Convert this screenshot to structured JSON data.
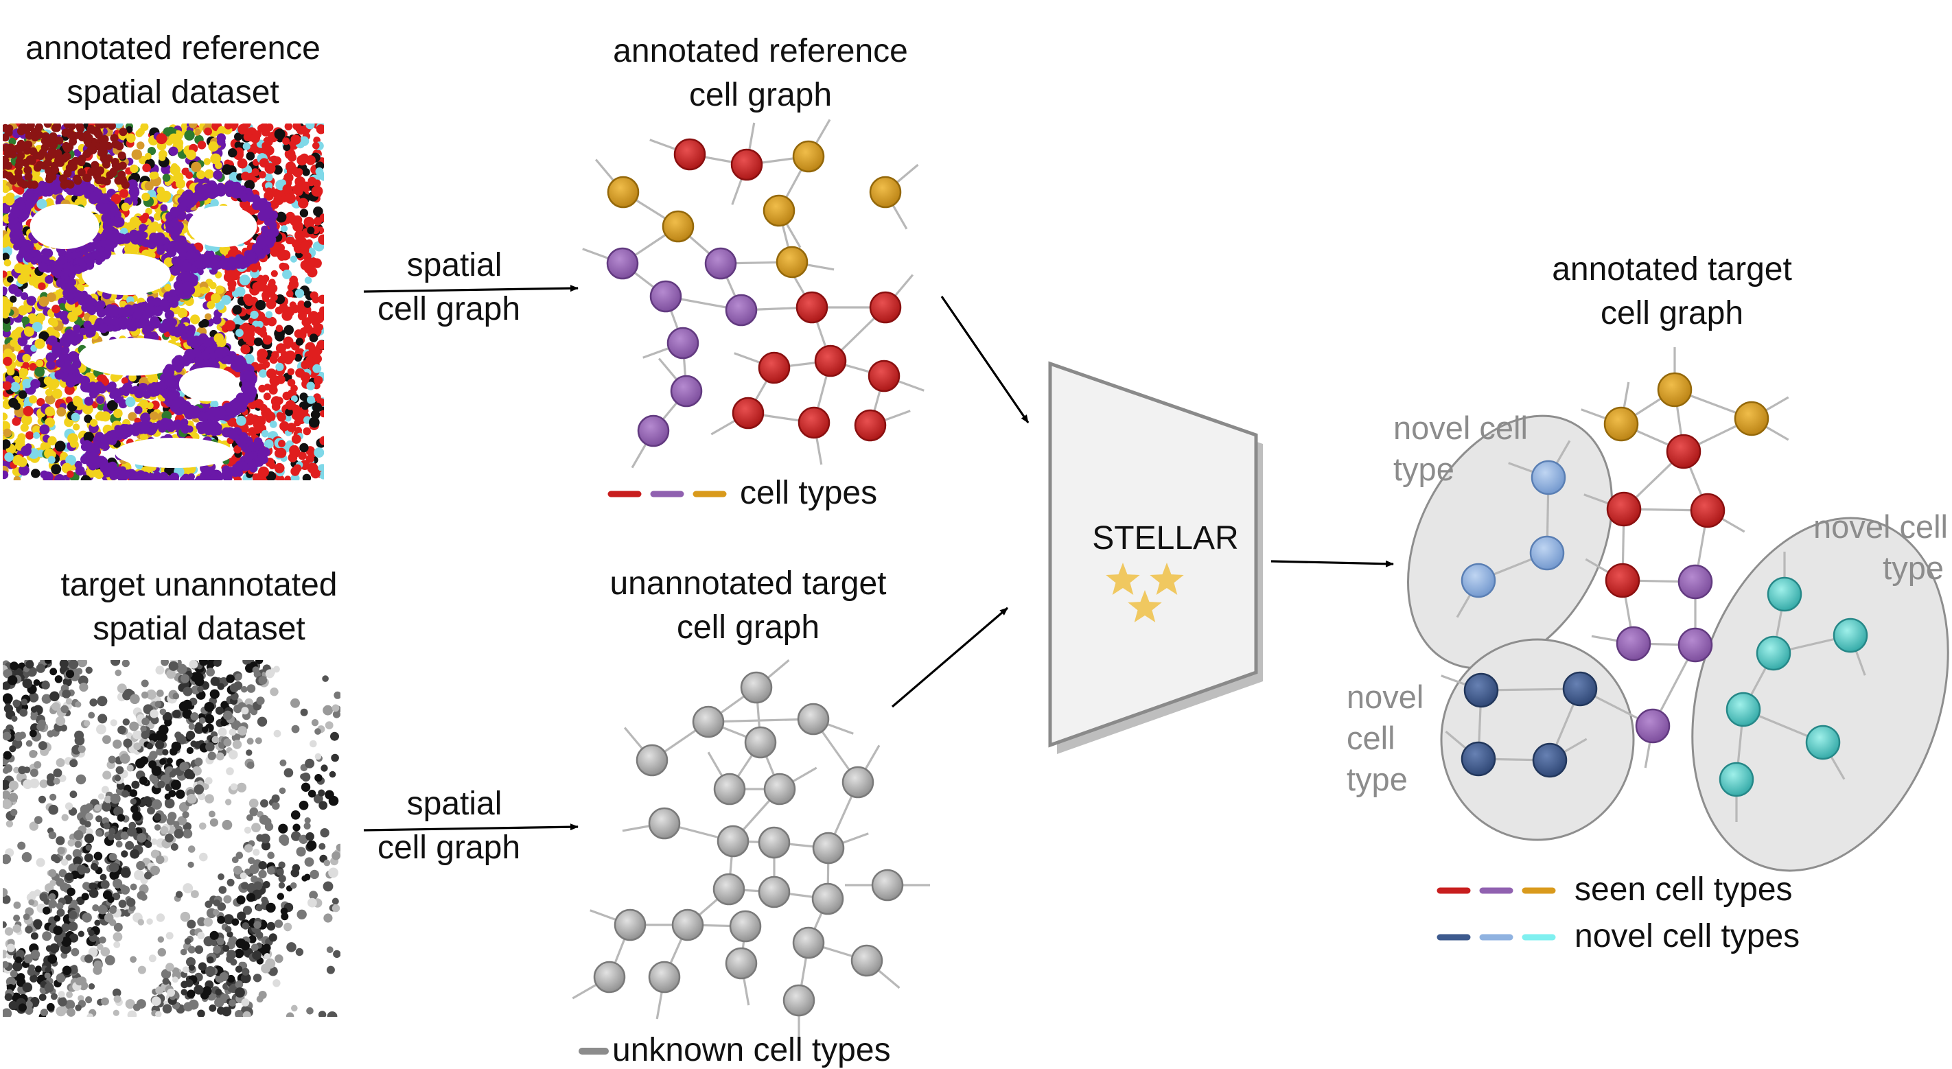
{
  "colors": {
    "red": "#c81e1e",
    "purple": "#9061b0",
    "orange": "#d99a1c",
    "grey": "#a8a8a8",
    "light_blue": "#8fb2e0",
    "dark_blue": "#3d5a8e",
    "cyan": "#4fc9c6",
    "star": "#f0c860"
  },
  "ref_dataset": {
    "title_line1": "annotated  reference",
    "title_line2": "spatial dataset"
  },
  "target_dataset": {
    "title_line1": "target unannotated",
    "title_line2": "spatial dataset"
  },
  "arrow_top": {
    "line1": "spatial",
    "line2": "cell graph"
  },
  "arrow_bottom": {
    "line1": "spatial",
    "line2": "cell graph"
  },
  "ref_graph": {
    "title_line1": "annotated reference",
    "title_line2": "cell graph",
    "legend": "cell types"
  },
  "target_graph": {
    "title_line1": "unannotated target",
    "title_line2": "cell graph",
    "legend": "unknown cell types"
  },
  "model": {
    "name": "STELLAR",
    "icon": "stars-icon"
  },
  "output_graph": {
    "title_line1": "annotated target",
    "title_line2": "cell graph",
    "novel_a_line1": "novel cell",
    "novel_a_line2": "type",
    "novel_b_line1": "novel cell",
    "novel_b_line2": "type",
    "novel_c_line1": "novel",
    "novel_c_line2": "cell",
    "novel_c_line3": "type",
    "legend_seen": "seen cell types",
    "legend_novel": "novel cell types"
  }
}
